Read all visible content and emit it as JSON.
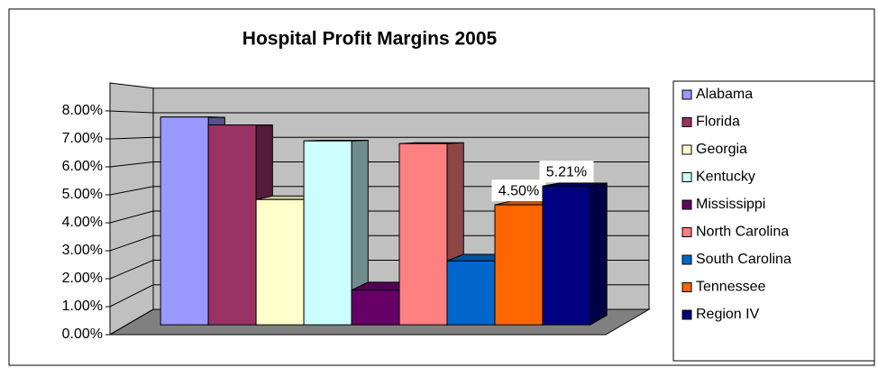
{
  "chart_data": {
    "type": "bar3d",
    "title": "Hospital Profit Margins 2005",
    "categories": [
      "Alabama",
      "Florida",
      "Georgia",
      "Kentucky",
      "Mississippi",
      "North Carolina",
      "South Carolina",
      "Tennessee",
      "Region IV"
    ],
    "values": [
      7.8,
      7.5,
      4.7,
      6.9,
      1.3,
      6.8,
      2.4,
      4.5,
      5.21
    ],
    "value_labels": [
      null,
      null,
      null,
      null,
      null,
      null,
      null,
      "4.50%",
      "5.21%"
    ],
    "colors": [
      "#9999ff",
      "#993366",
      "#ffffcc",
      "#ccffff",
      "#660066",
      "#ff8080",
      "#0066cc",
      "#ff6600",
      "#000080"
    ],
    "ylim": [
      0,
      9
    ],
    "yticks": [
      {
        "value": 0,
        "label": "0.00%"
      },
      {
        "value": 1,
        "label": "1.00%"
      },
      {
        "value": 2,
        "label": "2.00%"
      },
      {
        "value": 3,
        "label": "3.00%"
      },
      {
        "value": 4,
        "label": "4.00%"
      },
      {
        "value": 5,
        "label": "5.00%"
      },
      {
        "value": 6,
        "label": "6.00%"
      },
      {
        "value": 7,
        "label": "7.00%"
      },
      {
        "value": 8,
        "label": "8.00%"
      }
    ],
    "grid": true,
    "legend": "right"
  }
}
